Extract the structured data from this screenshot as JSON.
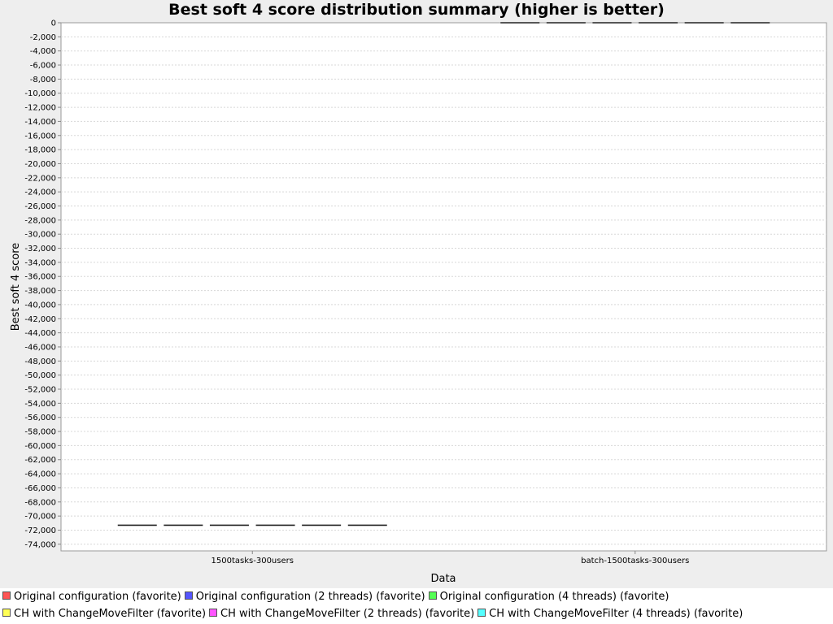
{
  "chart_data": {
    "type": "box",
    "title": "Best soft 4 score distribution summary (higher is better)",
    "xlabel": "Data",
    "ylabel": "Best soft 4 score",
    "ylim": [
      -75000,
      0
    ],
    "y_tick_step": 2000,
    "grid": true,
    "legend_position": "bottom",
    "categories": [
      "1500tasks-300users",
      "batch-1500tasks-300users"
    ],
    "series": [
      {
        "name": "Original configuration (favorite)",
        "color": "#ff5555",
        "values": [
          -71300,
          0
        ]
      },
      {
        "name": "Original configuration (2 threads) (favorite)",
        "color": "#5555ff",
        "values": [
          -71300,
          0
        ]
      },
      {
        "name": "Original configuration (4 threads) (favorite)",
        "color": "#55ff55",
        "values": [
          -71300,
          0
        ]
      },
      {
        "name": "CH with ChangeMoveFilter (favorite)",
        "color": "#ffff55",
        "values": [
          -71300,
          0
        ]
      },
      {
        "name": "CH with ChangeMoveFilter (2 threads) (favorite)",
        "color": "#ff55ff",
        "values": [
          -71300,
          0
        ]
      },
      {
        "name": "CH with ChangeMoveFilter (4 threads) (favorite)",
        "color": "#55ffff",
        "values": [
          -71300,
          0
        ]
      }
    ]
  }
}
